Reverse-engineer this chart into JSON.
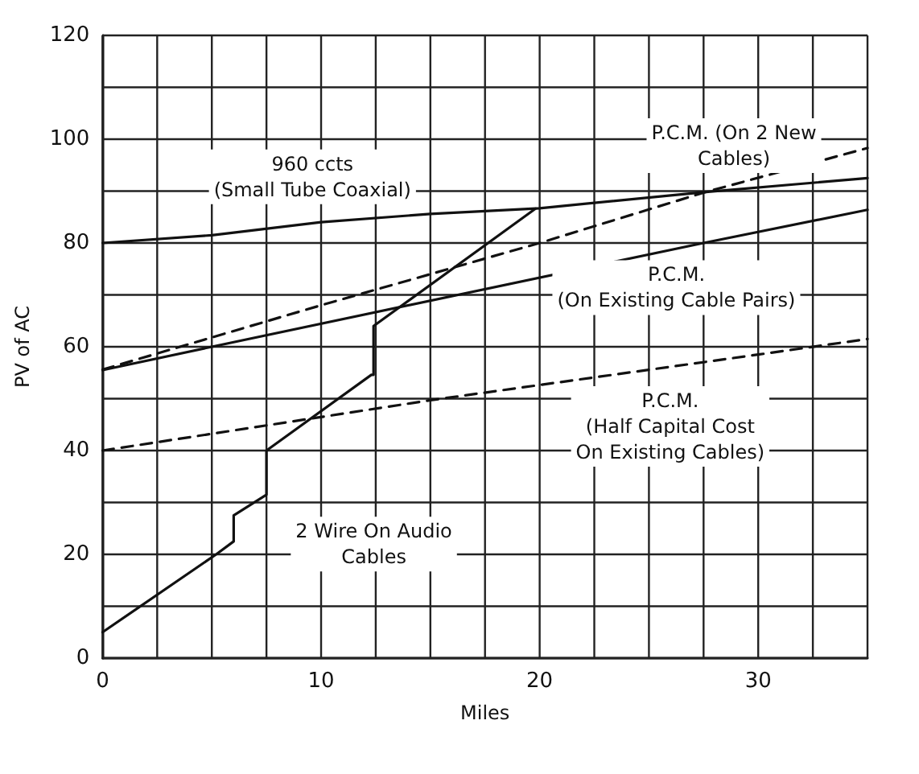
{
  "chart_data": {
    "type": "line",
    "xlabel": "Miles",
    "ylabel": "PV of AC",
    "xlim": [
      0,
      35
    ],
    "ylim": [
      0,
      120
    ],
    "xticks": [
      0,
      {
        "value": 2.5,
        "label": null
      },
      {
        "value": 5,
        "label": null
      },
      {
        "value": 7.5,
        "label": null
      },
      10,
      {
        "value": 12.5,
        "label": null
      },
      {
        "value": 15,
        "label": null
      },
      {
        "value": 17.5,
        "label": null
      },
      20,
      {
        "value": 22.5,
        "label": null
      },
      {
        "value": 25,
        "label": null
      },
      {
        "value": 27.5,
        "label": null
      },
      30,
      {
        "value": 32.5,
        "label": null
      },
      {
        "value": 35,
        "label": null
      }
    ],
    "yticks": [
      0,
      {
        "value": 10,
        "label": null
      },
      20,
      {
        "value": 30,
        "label": null
      },
      40,
      {
        "value": 50,
        "label": null
      },
      60,
      {
        "value": 70,
        "label": null
      },
      80,
      {
        "value": 90,
        "label": null
      },
      100,
      {
        "value": 110,
        "label": null
      },
      120
    ],
    "grid": true,
    "marker": "none",
    "series": [
      {
        "color": "#111111",
        "line_style": "solid",
        "x": [
          0,
          5,
          10,
          15,
          20,
          27.5,
          35
        ],
        "values": [
          80,
          81.5,
          84,
          85.6,
          86.7,
          89.8,
          92.5
        ]
      },
      {
        "color": "#111111",
        "line_style": "dashed",
        "x": [
          0,
          10,
          20,
          27.5,
          35
        ],
        "values": [
          55.6,
          68,
          80,
          89.7,
          98.3
        ]
      },
      {
        "color": "#111111",
        "line_style": "solid",
        "x": [
          0,
          5,
          27.5,
          35
        ],
        "values": [
          55.5,
          60,
          80,
          86.4
        ]
      },
      {
        "color": "#111111",
        "line_style": "dashed",
        "x": [
          0,
          15,
          30,
          35
        ],
        "values": [
          40,
          49.7,
          58.5,
          61.5
        ]
      },
      {
        "color": "#111111",
        "line_style": "solid",
        "x": [
          0,
          5.2,
          6,
          6,
          7.5,
          7.5,
          12.3,
          12.4,
          12.4,
          19.8
        ],
        "values": [
          5,
          20,
          22.5,
          27.5,
          31.5,
          40,
          54.6,
          54.6,
          64,
          86.6
        ]
      }
    ],
    "annotations": [
      "960 ccts\n(Small Tube Coaxial)",
      "P.C.M. (On 2 New\nCables)",
      "P.C.M.\n(On Existing Cable Pairs)",
      "P.C.M.\n(Half Capital Cost\nOn Existing Cables)",
      "2 Wire On Audio\nCables"
    ]
  }
}
